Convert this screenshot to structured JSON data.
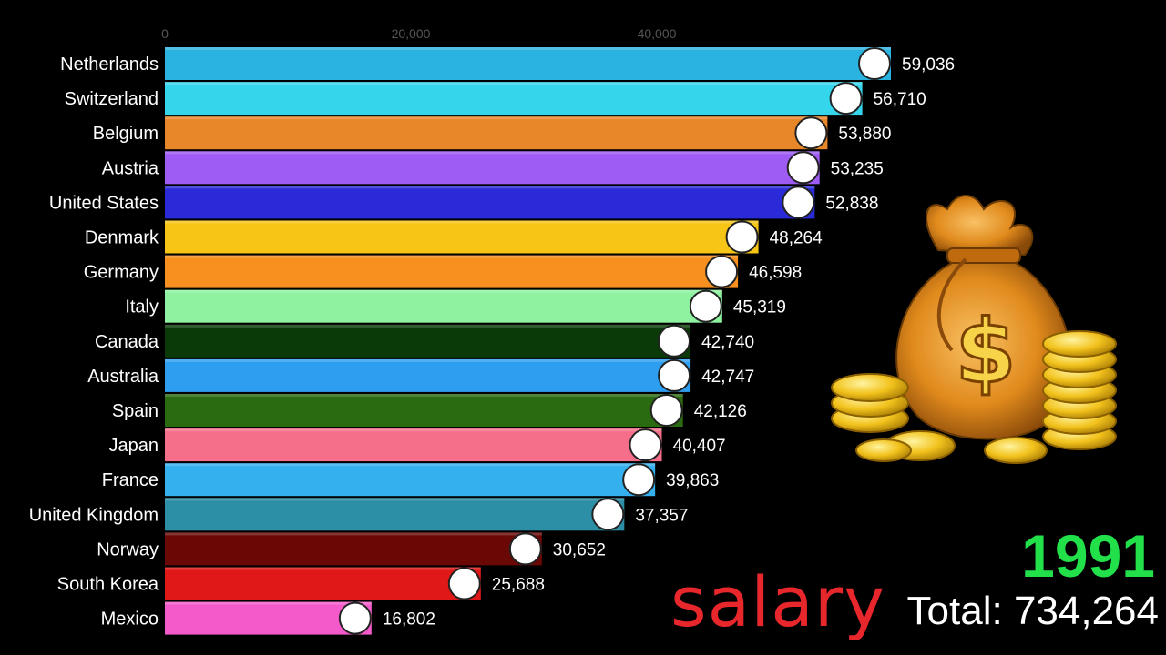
{
  "chart_data": {
    "type": "bar",
    "orientation": "horizontal",
    "x_ticks": [
      "0",
      "20,000",
      "40,000"
    ],
    "xlim": [
      0,
      59036
    ],
    "categories": [
      "Netherlands",
      "Switzerland",
      "Belgium",
      "Austria",
      "United States",
      "Denmark",
      "Germany",
      "Italy",
      "Canada",
      "Australia",
      "Spain",
      "Japan",
      "France",
      "United Kingdom",
      "Norway",
      "South Korea",
      "Mexico"
    ],
    "values": [
      59036,
      56710,
      53880,
      53235,
      52838,
      48264,
      46598,
      45319,
      42740,
      42747,
      42126,
      40407,
      39863,
      37357,
      30652,
      25688,
      16802
    ],
    "value_labels": [
      "59,036",
      "56,710",
      "53,880",
      "53,235",
      "52,838",
      "48,264",
      "46,598",
      "45,319",
      "42,740",
      "42,747",
      "42,126",
      "40,407",
      "39,863",
      "37,357",
      "30,652",
      "25,688",
      "16,802"
    ],
    "colors": [
      "#2ab3e0",
      "#35d6ec",
      "#e8862a",
      "#9e5cf5",
      "#2a2ad8",
      "#f7c515",
      "#f7901f",
      "#8ef2a0",
      "#0a3a08",
      "#2e9ff0",
      "#2a6a10",
      "#f56f8a",
      "#35b0ee",
      "#2c8fa5",
      "#6a0806",
      "#e01818",
      "#f55acb"
    ],
    "flag_icons": [
      "netherlands-flag-icon",
      "switzerland-flag-icon",
      "belgium-flag-icon",
      "austria-flag-icon",
      "united-states-flag-icon",
      "denmark-flag-icon",
      "germany-flag-icon",
      "italy-flag-icon",
      "canada-flag-icon",
      "australia-flag-icon",
      "spain-flag-icon",
      "japan-flag-icon",
      "france-flag-icon",
      "united-kingdom-flag-icon",
      "norway-flag-icon",
      "south-korea-flag-icon",
      "mexico-flag-icon"
    ]
  },
  "year": "1991",
  "caption": "salary",
  "total_label": "Total:",
  "total_value": "734,264",
  "illustration_icon": "money-bag-with-gold-coins-icon"
}
